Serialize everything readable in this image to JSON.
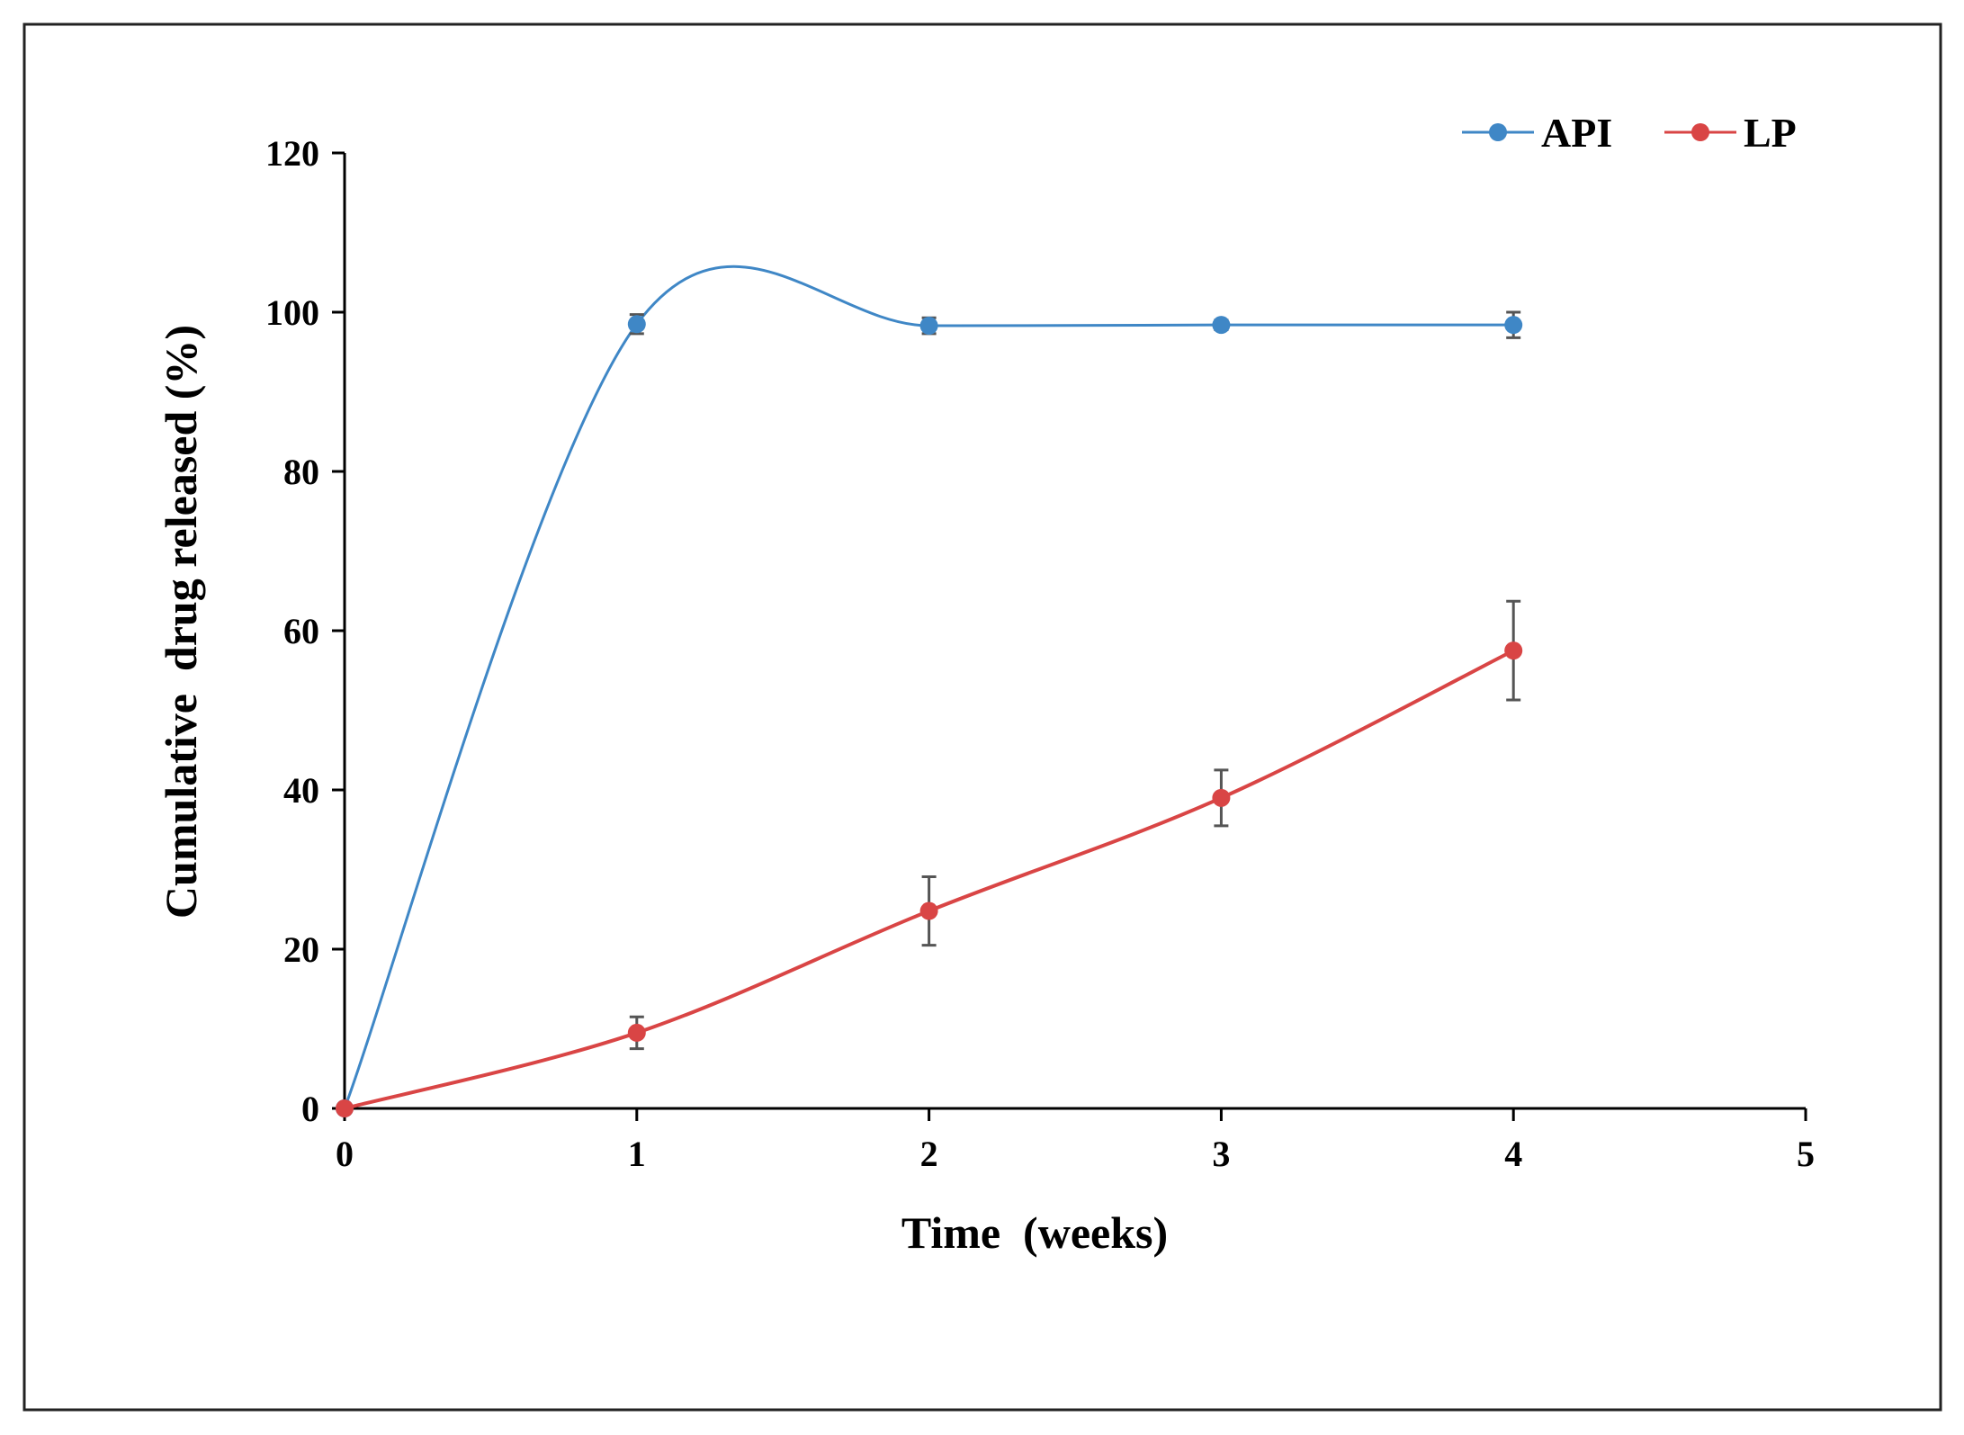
{
  "chart_data": {
    "type": "line",
    "title": "",
    "xlabel": "Time  (weeks)",
    "ylabel": "Cumulative  drug released (%)",
    "xlim": [
      0,
      5
    ],
    "ylim": [
      0,
      120
    ],
    "xticks": [
      0,
      1,
      2,
      3,
      4,
      5
    ],
    "yticks": [
      0,
      20,
      40,
      60,
      80,
      100,
      120
    ],
    "xtick_labels": [
      "0",
      "1",
      "2",
      "3",
      "4",
      "5"
    ],
    "ytick_labels": [
      "0",
      "20",
      "40",
      "60",
      "80",
      "100",
      "120"
    ],
    "grid": false,
    "legend_position": "top-right",
    "smoothed": true,
    "x": [
      0,
      1,
      2,
      3,
      4
    ],
    "series": [
      {
        "name": "API",
        "color": "#3f87c6",
        "values": [
          0,
          98.5,
          98.3,
          98.4,
          98.4
        ],
        "error": [
          0,
          1.2,
          1.0,
          0.6,
          1.6
        ]
      },
      {
        "name": "LP",
        "color": "#d94545",
        "values": [
          0,
          9.5,
          24.8,
          39.0,
          57.5
        ],
        "error": [
          0,
          2.0,
          4.3,
          3.5,
          6.2
        ]
      }
    ]
  }
}
